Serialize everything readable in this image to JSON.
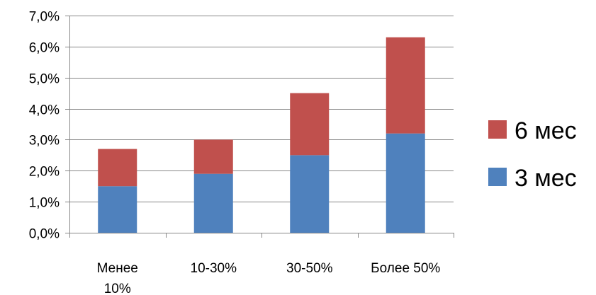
{
  "chart_data": {
    "type": "bar",
    "stacked": true,
    "categories": [
      [
        "Менее",
        "10%"
      ],
      [
        "10-30%"
      ],
      [
        "30-50%"
      ],
      [
        "Более 50%"
      ]
    ],
    "series": [
      {
        "name": "3 мес",
        "values": [
          1.5,
          1.9,
          2.5,
          3.2
        ],
        "color": "#4F81BD"
      },
      {
        "name": "6 мес",
        "values": [
          1.2,
          1.1,
          2.0,
          3.1
        ],
        "color": "#C0504D"
      }
    ],
    "yticks": [
      "0,0%",
      "1,0%",
      "2,0%",
      "3,0%",
      "4,0%",
      "5,0%",
      "6,0%",
      "7,0%"
    ],
    "ylim": [
      0,
      7
    ],
    "grid": true,
    "legend_position": "right"
  }
}
